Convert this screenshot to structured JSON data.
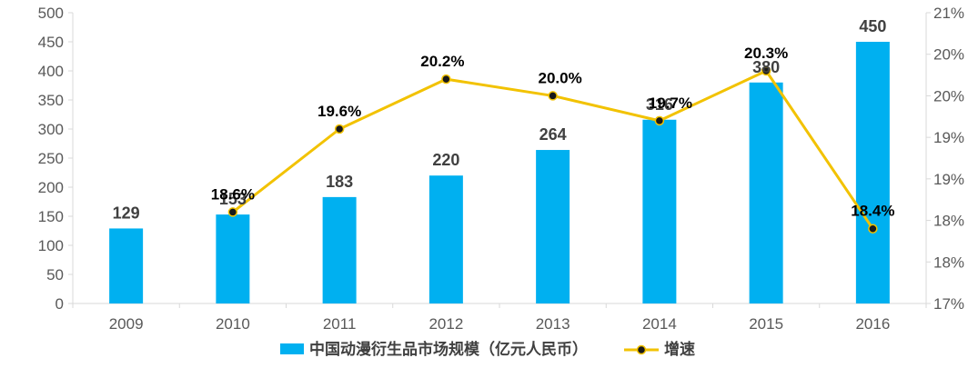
{
  "chart_data": {
    "type": "bar",
    "categories": [
      "2009",
      "2010",
      "2011",
      "2012",
      "2013",
      "2014",
      "2015",
      "2016"
    ],
    "series": [
      {
        "name": "中国动漫衍生品市场规模（亿元人民币）",
        "type": "bar",
        "axis": "left",
        "values": [
          129,
          153,
          183,
          220,
          264,
          316,
          380,
          450
        ],
        "labels": [
          "129",
          "153",
          "183",
          "220",
          "264",
          "316",
          "380",
          "450"
        ],
        "color": "#00b0f0"
      },
      {
        "name": "增速",
        "type": "line",
        "axis": "right",
        "values": [
          null,
          18.6,
          19.6,
          20.2,
          20.0,
          19.7,
          20.3,
          18.4
        ],
        "labels": [
          "",
          "18.6%",
          "19.6%",
          "20.2%",
          "20.0%",
          "19.7%",
          "20.3%",
          "18.4%"
        ],
        "color": "#f2c200",
        "marker_color": "#1a1a1a"
      }
    ],
    "y_left": {
      "ticks": [
        "0",
        "50",
        "100",
        "150",
        "200",
        "250",
        "300",
        "350",
        "400",
        "450",
        "500"
      ],
      "ylim": [
        0,
        500
      ]
    },
    "y_right": {
      "ticks": [
        "17%",
        "18%",
        "18%",
        "19%",
        "19%",
        "20%",
        "20%",
        "21%"
      ],
      "ylim": [
        17.5,
        21.0
      ]
    },
    "legend": {
      "position": "bottom-center",
      "items": [
        {
          "label": "中国动漫衍生品市场规模（亿元人民币）",
          "kind": "bar",
          "color": "#00b0f0"
        },
        {
          "label": "增速",
          "kind": "line",
          "color": "#f2c200"
        }
      ]
    },
    "grid": false,
    "title": "",
    "xlabel": "",
    "ylabel": ""
  }
}
